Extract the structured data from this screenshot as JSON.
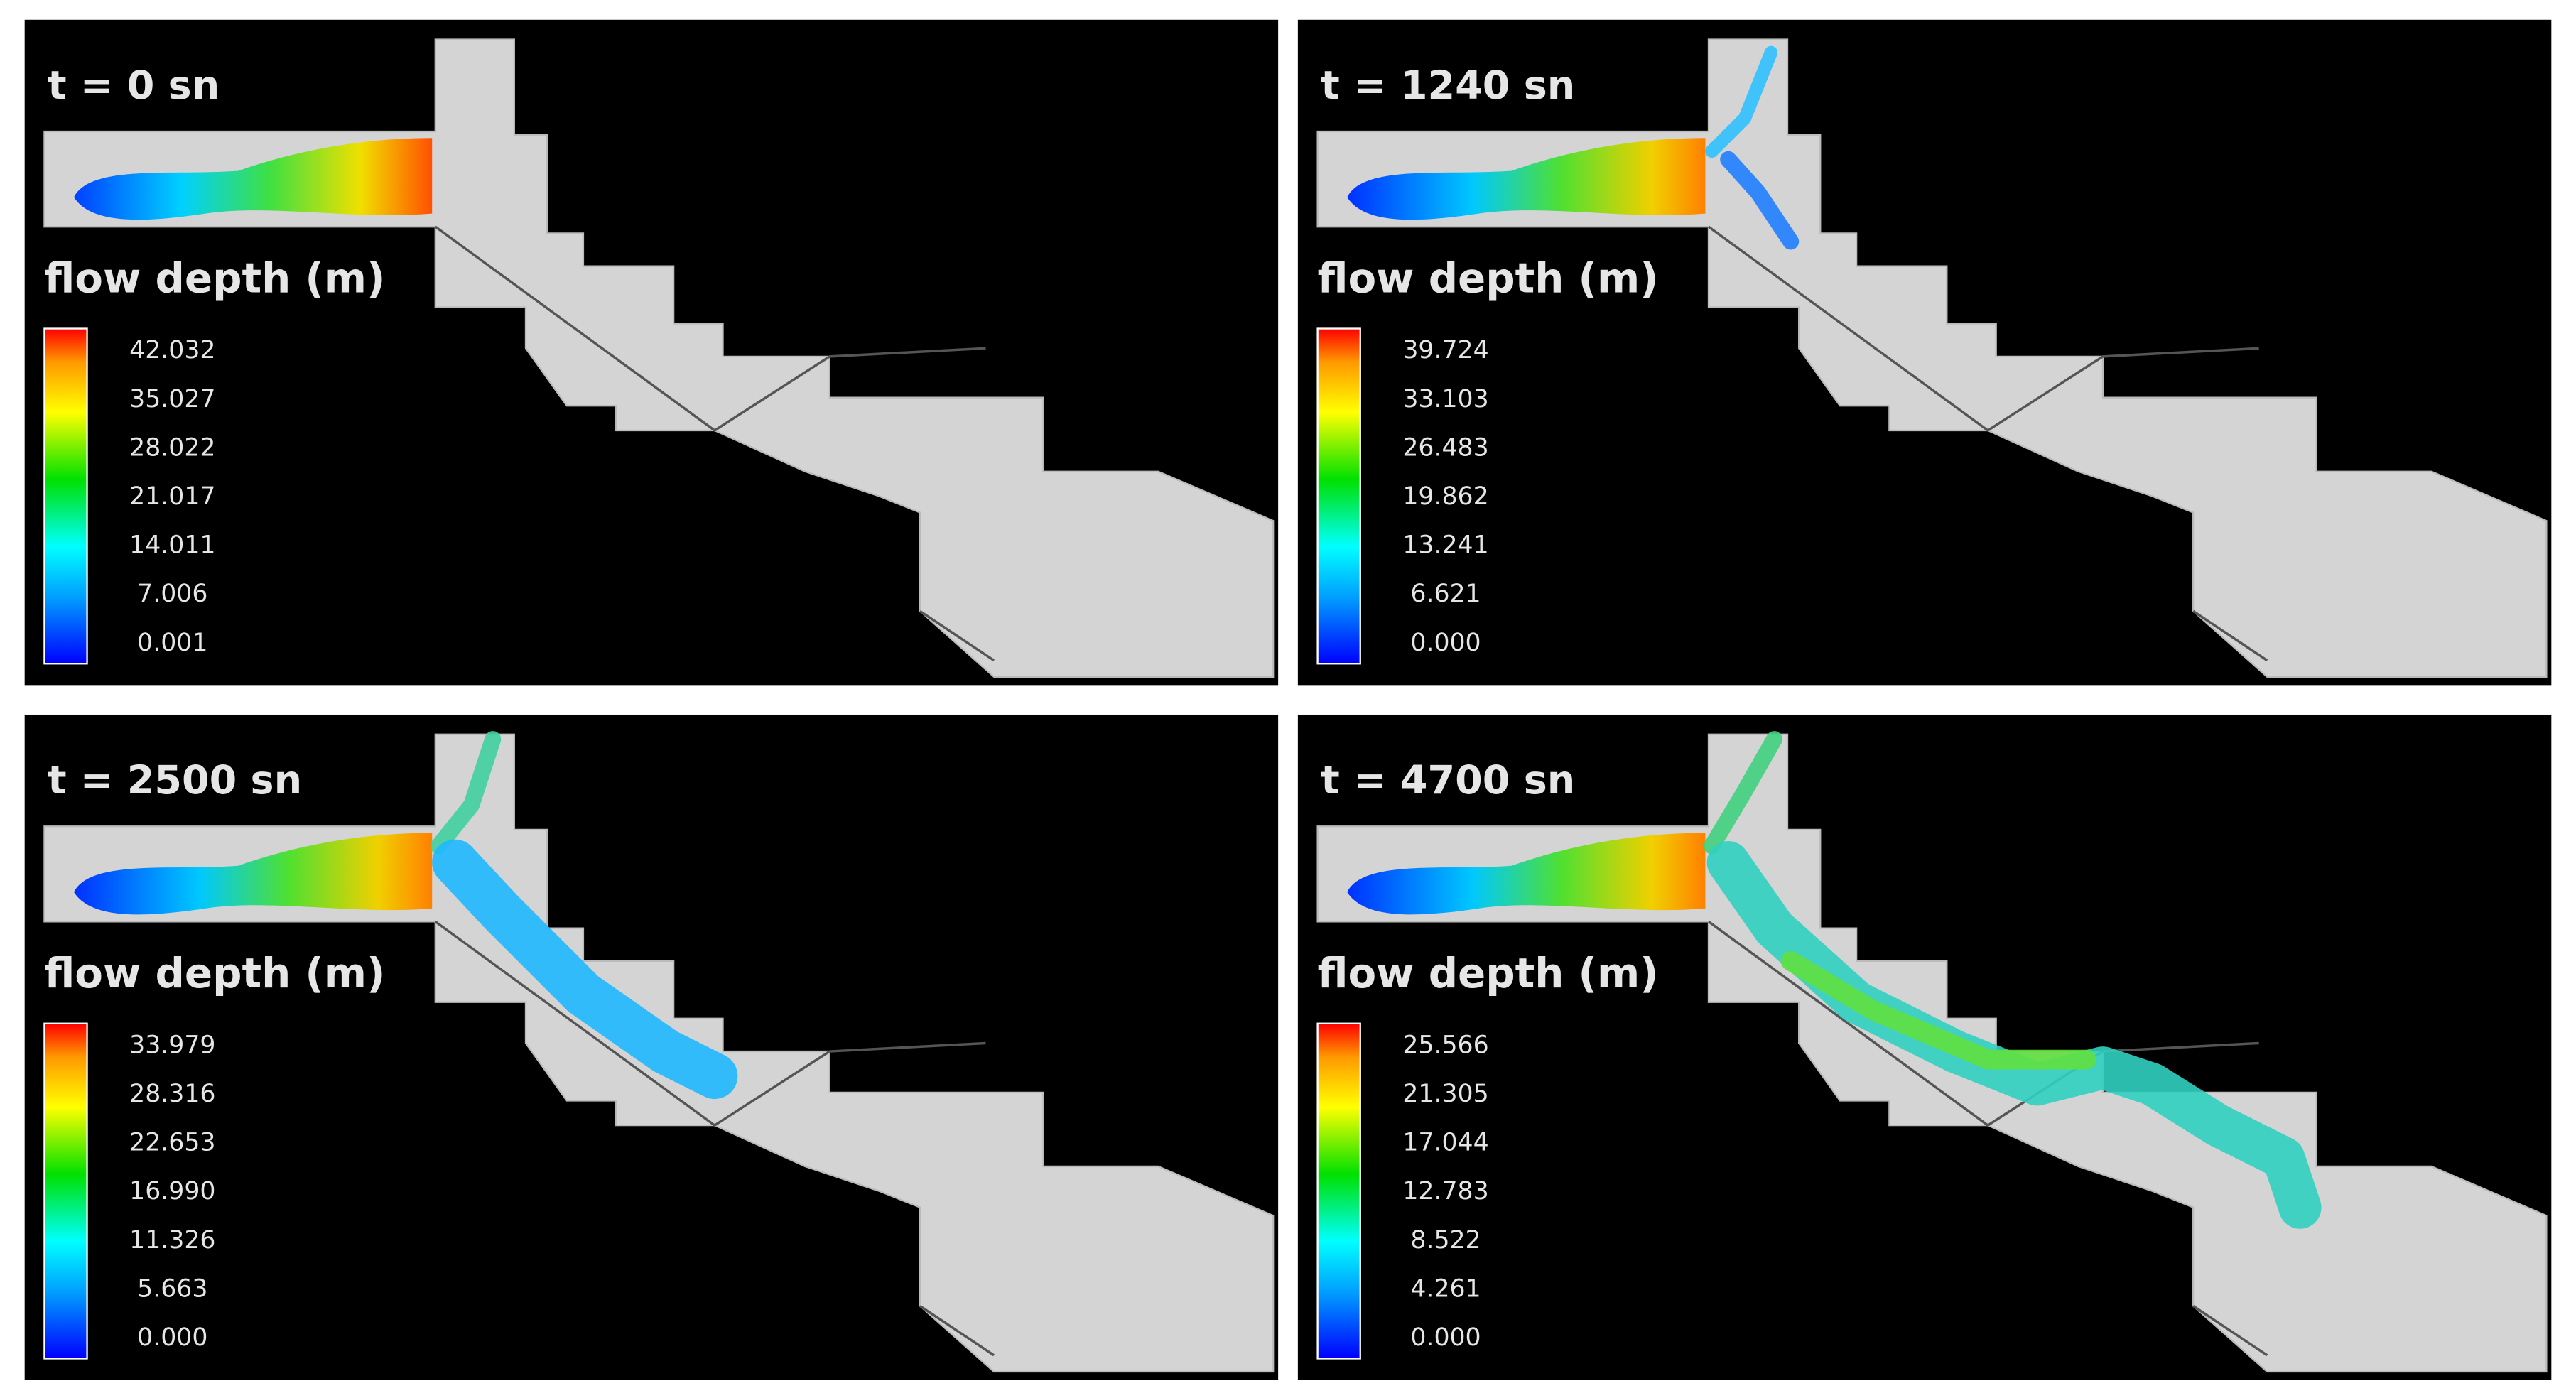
{
  "panels": [
    {
      "time": "t = 0 sn",
      "legend_title": "flow depth (m)",
      "ticks": [
        "42.032",
        "35.027",
        "28.022",
        "21.017",
        "14.011",
        "7.006",
        "0.001"
      ]
    },
    {
      "time": "t = 1240 sn",
      "legend_title": "flow depth (m)",
      "ticks": [
        "39.724",
        "33.103",
        "26.483",
        "19.862",
        "13.241",
        "6.621",
        "0.000"
      ]
    },
    {
      "time": "t = 2500 sn",
      "legend_title": "flow depth (m)",
      "ticks": [
        "33.979",
        "28.316",
        "22.653",
        "16.990",
        "11.326",
        "5.663",
        "0.000"
      ]
    },
    {
      "time": "t = 4700 sn",
      "legend_title": "flow depth (m)",
      "ticks": [
        "25.566",
        "21.305",
        "17.044",
        "12.783",
        "8.522",
        "4.261",
        "0.000"
      ]
    }
  ]
}
